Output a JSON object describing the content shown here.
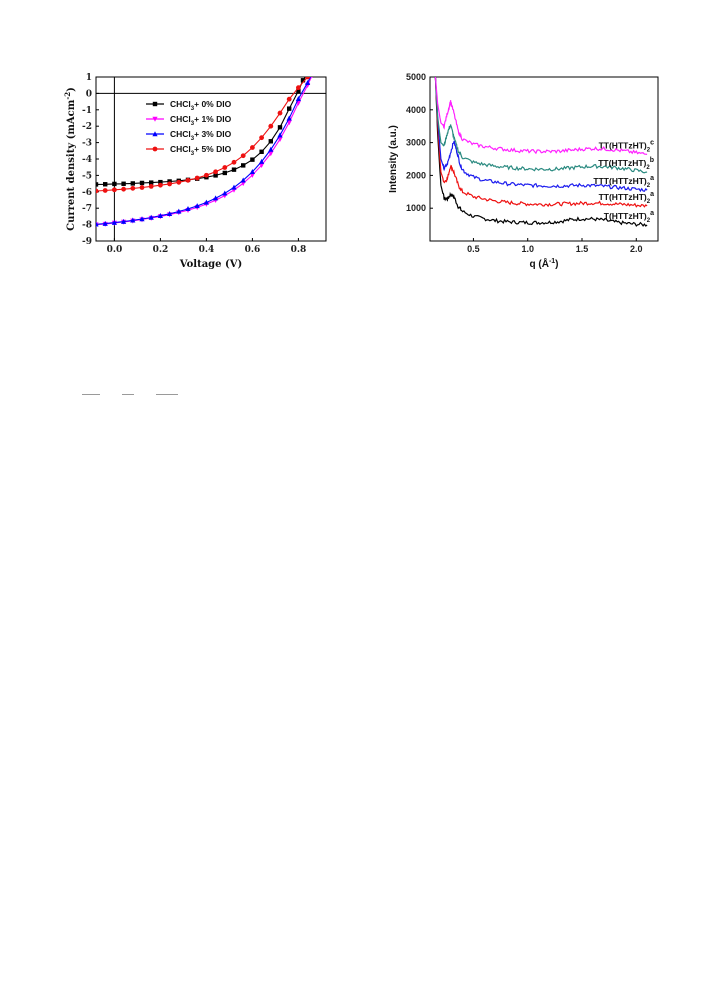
{
  "chart_data": [
    {
      "type": "line",
      "title": "",
      "xlabel": "Voltage (V)",
      "ylabel_parts": [
        "Current density (mAcm",
        "-2",
        ")"
      ],
      "xlim": [
        -0.08,
        0.92
      ],
      "ylim": [
        -9,
        1
      ],
      "x_ticks": [
        "0.0",
        "0.2",
        "0.4",
        "0.6",
        "0.8"
      ],
      "x_tick_values": [
        0,
        0.2,
        0.4,
        0.6,
        0.8
      ],
      "y_ticks": [
        "1",
        "0",
        "-1",
        "-2",
        "-3",
        "-4",
        "-5",
        "-6",
        "-7",
        "-8",
        "-9"
      ],
      "y_tick_values": [
        1,
        0,
        -1,
        -2,
        -3,
        -4,
        -5,
        -6,
        -7,
        -8,
        -9
      ],
      "reference_lines": {
        "x": 0,
        "y": 0
      },
      "grid": false,
      "legend_position": "top-left",
      "series": [
        {
          "name_parts": [
            "CHCl",
            "3",
            "+ 0% DIO"
          ],
          "color": "#000000",
          "marker": "square",
          "x": [
            -0.08,
            -0.04,
            0,
            0.04,
            0.08,
            0.12,
            0.16,
            0.2,
            0.24,
            0.28,
            0.32,
            0.36,
            0.4,
            0.44,
            0.48,
            0.52,
            0.56,
            0.6,
            0.64,
            0.68,
            0.72,
            0.76,
            0.8,
            0.82,
            0.84,
            0.86
          ],
          "y": [
            -5.55,
            -5.54,
            -5.52,
            -5.51,
            -5.49,
            -5.46,
            -5.44,
            -5.41,
            -5.37,
            -5.33,
            -5.27,
            -5.2,
            -5.11,
            -5.0,
            -4.85,
            -4.65,
            -4.39,
            -4.04,
            -3.56,
            -2.92,
            -2.07,
            -0.93,
            0.15,
            0.8,
            1.2,
            1.6
          ]
        },
        {
          "name_parts": [
            "CHCl",
            "3",
            "+ 1% DIO"
          ],
          "color": "#ff00ff",
          "marker": "triangle-down",
          "x": [
            -0.08,
            -0.04,
            0,
            0.04,
            0.08,
            0.12,
            0.16,
            0.2,
            0.24,
            0.28,
            0.32,
            0.36,
            0.4,
            0.44,
            0.48,
            0.52,
            0.56,
            0.6,
            0.64,
            0.68,
            0.72,
            0.76,
            0.8,
            0.84,
            0.86,
            0.88
          ],
          "y": [
            -8.0,
            -7.97,
            -7.9,
            -7.84,
            -7.77,
            -7.69,
            -7.6,
            -7.5,
            -7.39,
            -7.26,
            -7.12,
            -6.95,
            -6.75,
            -6.51,
            -6.23,
            -5.89,
            -5.48,
            -4.98,
            -4.38,
            -3.66,
            -2.79,
            -1.77,
            -0.58,
            0.5,
            1.1,
            1.6
          ]
        },
        {
          "name_parts": [
            "CHCl",
            "3",
            "+ 3% DIO"
          ],
          "color": "#0000ff",
          "marker": "triangle-up",
          "x": [
            -0.08,
            -0.04,
            0,
            0.04,
            0.08,
            0.12,
            0.16,
            0.2,
            0.24,
            0.28,
            0.32,
            0.36,
            0.4,
            0.44,
            0.48,
            0.52,
            0.56,
            0.6,
            0.64,
            0.68,
            0.72,
            0.76,
            0.8,
            0.84,
            0.86,
            0.88
          ],
          "y": [
            -7.98,
            -7.94,
            -7.88,
            -7.82,
            -7.74,
            -7.66,
            -7.57,
            -7.46,
            -7.34,
            -7.2,
            -7.04,
            -6.86,
            -6.65,
            -6.39,
            -6.09,
            -5.73,
            -5.3,
            -4.78,
            -4.16,
            -3.42,
            -2.55,
            -1.52,
            -0.33,
            0.65,
            1.2,
            1.6
          ]
        },
        {
          "name_parts": [
            "CHCl",
            "3",
            "+ 5% DIO"
          ],
          "color": "#ee1111",
          "marker": "circle",
          "x": [
            -0.08,
            -0.04,
            0,
            0.04,
            0.08,
            0.12,
            0.16,
            0.2,
            0.24,
            0.28,
            0.32,
            0.36,
            0.4,
            0.44,
            0.48,
            0.52,
            0.56,
            0.6,
            0.64,
            0.68,
            0.72,
            0.76,
            0.8,
            0.84,
            0.86,
            0.88
          ],
          "y": [
            -5.95,
            -5.92,
            -5.88,
            -5.84,
            -5.79,
            -5.74,
            -5.67,
            -5.6,
            -5.52,
            -5.42,
            -5.3,
            -5.16,
            -4.99,
            -4.78,
            -4.52,
            -4.2,
            -3.8,
            -3.3,
            -2.7,
            -2.0,
            -1.2,
            -0.35,
            0.35,
            1.0,
            1.3,
            1.6
          ]
        }
      ]
    },
    {
      "type": "line",
      "title": "",
      "xlabel_parts": [
        "q (Å",
        "-1",
        ")"
      ],
      "ylabel": "Intensity (a.u.)",
      "xlim": [
        0.1,
        2.2
      ],
      "ylim": [
        0,
        5000
      ],
      "x_ticks": [
        "0.5",
        "1.0",
        "1.5",
        "2.0"
      ],
      "x_tick_values": [
        0.5,
        1.0,
        1.5,
        2.0
      ],
      "y_ticks": [
        "1000",
        "2000",
        "3000",
        "4000",
        "5000"
      ],
      "y_tick_values": [
        1000,
        2000,
        3000,
        4000,
        5000
      ],
      "grid": false,
      "series": [
        {
          "label_parts": [
            "T(HTTzHT)",
            "2",
            "a"
          ],
          "color": "#000000",
          "x": [
            0.15,
            0.17,
            0.2,
            0.23,
            0.26,
            0.29,
            0.32,
            0.36,
            0.4,
            0.5,
            0.6,
            0.7,
            0.8,
            0.9,
            1.0,
            1.1,
            1.2,
            1.3,
            1.4,
            1.5,
            1.6,
            1.7,
            1.8,
            1.9,
            2.0,
            2.1
          ],
          "y": [
            5000,
            3300,
            1700,
            1300,
            1280,
            1420,
            1350,
            1050,
            900,
            750,
            680,
            620,
            590,
            570,
            560,
            560,
            570,
            600,
            650,
            680,
            670,
            640,
            580,
            540,
            510,
            490
          ]
        },
        {
          "label_parts": [
            "TT(HTTzHT)",
            "2",
            "a"
          ],
          "color": "#ee1111",
          "x": [
            0.15,
            0.17,
            0.2,
            0.23,
            0.26,
            0.29,
            0.32,
            0.36,
            0.4,
            0.5,
            0.6,
            0.7,
            0.8,
            0.9,
            1.0,
            1.1,
            1.2,
            1.3,
            1.4,
            1.5,
            1.6,
            1.7,
            1.8,
            1.9,
            2.0,
            2.1
          ],
          "y": [
            5000,
            3600,
            2100,
            1800,
            1900,
            2300,
            2100,
            1700,
            1500,
            1350,
            1280,
            1220,
            1180,
            1150,
            1130,
            1120,
            1120,
            1130,
            1140,
            1150,
            1160,
            1150,
            1130,
            1110,
            1090,
            1070
          ]
        },
        {
          "label_parts": [
            "TTT(HTTzHT)",
            "2",
            "a"
          ],
          "color": "#1a1aee",
          "x": [
            0.15,
            0.17,
            0.2,
            0.23,
            0.26,
            0.29,
            0.32,
            0.35,
            0.38,
            0.42,
            0.5,
            0.6,
            0.7,
            0.8,
            0.9,
            1.0,
            1.1,
            1.2,
            1.3,
            1.4,
            1.5,
            1.6,
            1.7,
            1.8,
            1.9,
            2.0,
            2.1
          ],
          "y": [
            5000,
            3800,
            2500,
            2200,
            2350,
            2700,
            3050,
            2700,
            2300,
            2100,
            1950,
            1850,
            1800,
            1750,
            1720,
            1700,
            1690,
            1680,
            1680,
            1690,
            1700,
            1690,
            1670,
            1640,
            1610,
            1580,
            1550
          ]
        },
        {
          "label_parts": [
            "TT(HTTzHT)",
            "2",
            "b"
          ],
          "color": "#2a8a80",
          "x": [
            0.15,
            0.17,
            0.2,
            0.23,
            0.26,
            0.29,
            0.32,
            0.36,
            0.4,
            0.5,
            0.6,
            0.7,
            0.8,
            0.9,
            1.0,
            1.1,
            1.2,
            1.3,
            1.4,
            1.5,
            1.6,
            1.7,
            1.8,
            1.9,
            2.0,
            2.1
          ],
          "y": [
            5000,
            3800,
            3000,
            2900,
            3300,
            3550,
            3150,
            2750,
            2550,
            2400,
            2330,
            2280,
            2250,
            2220,
            2200,
            2190,
            2190,
            2200,
            2230,
            2260,
            2280,
            2270,
            2240,
            2200,
            2150,
            2100
          ]
        },
        {
          "label_parts": [
            "TT(HTTzHT)",
            "2",
            "c"
          ],
          "color": "#ff22ff",
          "x": [
            0.15,
            0.17,
            0.2,
            0.23,
            0.26,
            0.29,
            0.32,
            0.36,
            0.4,
            0.5,
            0.6,
            0.7,
            0.8,
            0.9,
            1.0,
            1.1,
            1.2,
            1.3,
            1.4,
            1.5,
            1.6,
            1.7,
            1.8,
            1.9,
            2.0,
            2.1
          ],
          "y": [
            5000,
            4200,
            3600,
            3500,
            3900,
            4250,
            3900,
            3350,
            3100,
            2950,
            2880,
            2830,
            2790,
            2760,
            2740,
            2730,
            2730,
            2740,
            2770,
            2800,
            2820,
            2810,
            2780,
            2740,
            2690,
            2640
          ]
        }
      ]
    }
  ]
}
